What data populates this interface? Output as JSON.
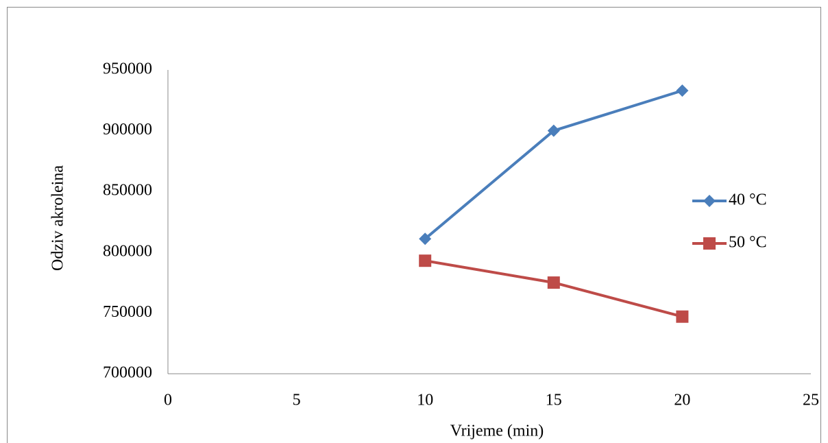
{
  "chart_data": {
    "type": "line",
    "x_label": "Vrijeme (min)",
    "y_label": "Odziv akroleina",
    "series": [
      {
        "name": "40 °C",
        "color": "#4a7ebb",
        "marker": "diamond",
        "x": [
          10,
          15,
          20
        ],
        "values": [
          811000,
          900000,
          933000
        ]
      },
      {
        "name": "50 °C",
        "color": "#be4b48",
        "marker": "square",
        "x": [
          10,
          15,
          20
        ],
        "values": [
          793000,
          775000,
          747000
        ]
      }
    ],
    "xlim": [
      0,
      25
    ],
    "xticks": [
      0,
      5,
      10,
      15,
      20,
      25
    ],
    "ylim": [
      700000,
      950000
    ],
    "yticks": [
      700000,
      750000,
      800000,
      850000,
      900000,
      950000
    ],
    "grid": false,
    "legend": "right"
  }
}
